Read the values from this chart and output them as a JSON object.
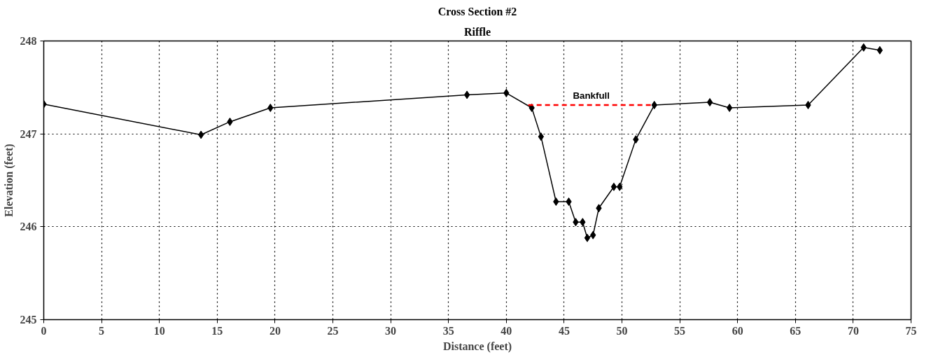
{
  "chart_data": {
    "type": "line",
    "title": "Cross Section #2",
    "subtitle": "Riffle",
    "xlabel": "Distance (feet)",
    "ylabel": "Elevation (feet)",
    "xlim": [
      0,
      75
    ],
    "xticks": [
      0,
      5,
      10,
      15,
      20,
      25,
      30,
      35,
      40,
      45,
      50,
      55,
      60,
      65,
      70,
      75
    ],
    "ylim": [
      245,
      248
    ],
    "yticks": [
      245,
      246,
      247,
      248
    ],
    "grid": true,
    "series": [
      {
        "color": "#000000",
        "marker": "diamond",
        "line_style": "solid",
        "x": [
          0,
          13.6,
          16.1,
          19.6,
          36.6,
          40.0,
          42.2,
          43.0,
          44.3,
          45.4,
          46.0,
          46.6,
          47.0,
          47.5,
          48.0,
          49.3,
          49.8,
          51.2,
          52.8,
          57.6,
          59.3,
          66.1,
          70.9,
          72.3
        ],
        "values": [
          247.32,
          246.99,
          247.13,
          247.28,
          247.42,
          247.44,
          247.28,
          246.97,
          246.27,
          246.27,
          246.05,
          246.05,
          245.88,
          245.91,
          246.2,
          246.43,
          246.43,
          246.94,
          247.31,
          247.34,
          247.28,
          247.31,
          247.93,
          247.9
        ]
      },
      {
        "name": "Bankfull",
        "color": "#ff0000",
        "marker": "none",
        "line_style": "dashed",
        "x": [
          41.9,
          52.8
        ],
        "values": [
          247.31,
          247.31
        ]
      }
    ]
  }
}
